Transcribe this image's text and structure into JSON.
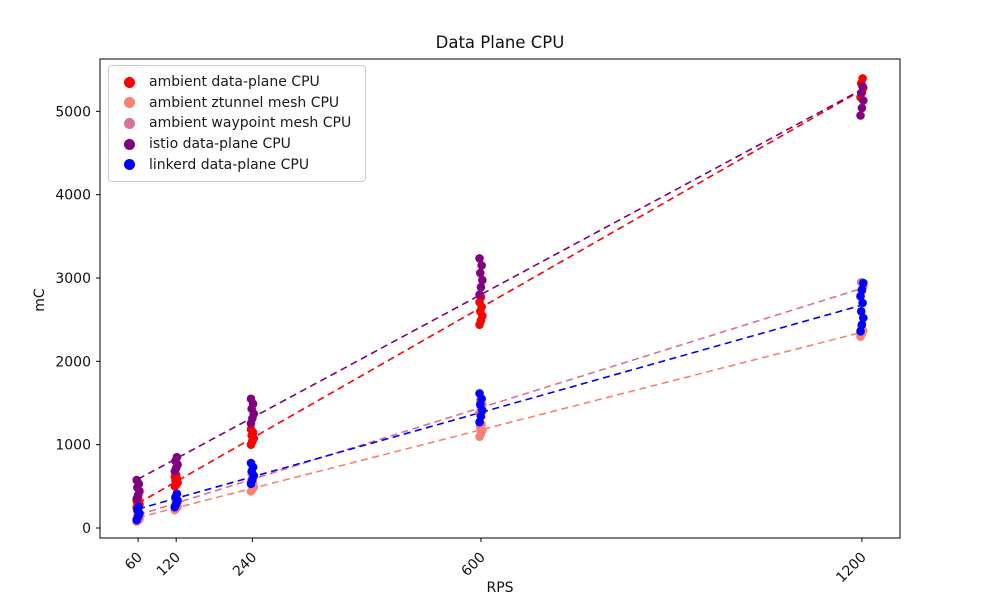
{
  "chart_data": {
    "type": "scatter",
    "title": "Data Plane CPU",
    "xlabel": "RPS",
    "ylabel": "mC",
    "x_ticks": [
      60,
      120,
      240,
      600,
      1200
    ],
    "y_ticks": [
      0,
      1000,
      2000,
      3000,
      4000,
      5000
    ],
    "xlim": [
      0,
      1260
    ],
    "ylim": [
      -120,
      5628
    ],
    "grid": false,
    "legend_position": "upper left",
    "trend_line_style": "dashed linear fit per series spanning RPS 60 to 1200",
    "series": [
      {
        "name": "ambient data-plane CPU",
        "color": "#ff0000",
        "clusters": [
          {
            "rps": 60,
            "values": [
              245,
              265,
              285,
              300,
              315,
              335,
              355
            ]
          },
          {
            "rps": 120,
            "values": [
              500,
              520,
              545,
              565,
              590,
              615,
              635
            ]
          },
          {
            "rps": 240,
            "values": [
              1000,
              1040,
              1075,
              1110,
              1145,
              1185
            ]
          },
          {
            "rps": 600,
            "values": [
              2440,
              2490,
              2545,
              2600,
              2655,
              2710,
              2770
            ]
          },
          {
            "rps": 1200,
            "values": [
              5170,
              5225,
              5280,
              5335,
              5395
            ]
          }
        ]
      },
      {
        "name": "ambient ztunnel mesh CPU",
        "color": "#fa8072",
        "clusters": [
          {
            "rps": 60,
            "values": [
              75,
              90,
              105,
              120,
              135
            ]
          },
          {
            "rps": 120,
            "values": [
              215,
              235,
              255,
              275,
              295
            ]
          },
          {
            "rps": 240,
            "values": [
              440,
              465,
              490,
              515,
              540
            ]
          },
          {
            "rps": 600,
            "values": [
              1095,
              1130,
              1170,
              1210,
              1245
            ]
          },
          {
            "rps": 1200,
            "values": [
              2295,
              2330,
              2370,
              2405
            ]
          }
        ]
      },
      {
        "name": "ambient waypoint mesh CPU",
        "color": "#db7093",
        "clusters": [
          {
            "rps": 60,
            "values": [
              110,
              125,
              140,
              155,
              170
            ]
          },
          {
            "rps": 120,
            "values": [
              260,
              285,
              310,
              335
            ]
          },
          {
            "rps": 240,
            "values": [
              560,
              590,
              620,
              650
            ]
          },
          {
            "rps": 600,
            "values": [
              1380,
              1430,
              1480,
              1530
            ]
          },
          {
            "rps": 1200,
            "values": [
              2780,
              2840,
              2900,
              2950
            ]
          }
        ]
      },
      {
        "name": "istio data-plane CPU",
        "color": "#800080",
        "clusters": [
          {
            "rps": 60,
            "values": [
              350,
              395,
              440,
              485,
              530,
              575
            ]
          },
          {
            "rps": 120,
            "values": [
              680,
              720,
              760,
              805,
              850
            ]
          },
          {
            "rps": 240,
            "values": [
              1255,
              1315,
              1370,
              1430,
              1490,
              1550
            ]
          },
          {
            "rps": 600,
            "values": [
              2800,
              2890,
              2975,
              3060,
              3150,
              3235
            ]
          },
          {
            "rps": 1200,
            "values": [
              4950,
              5040,
              5130,
              5220,
              5300
            ]
          }
        ]
      },
      {
        "name": "linkerd data-plane CPU",
        "color": "#0000ff",
        "clusters": [
          {
            "rps": 60,
            "values": [
              95,
              135,
              175,
              215,
              255
            ]
          },
          {
            "rps": 120,
            "values": [
              250,
              290,
              330,
              370,
              410
            ]
          },
          {
            "rps": 240,
            "values": [
              530,
              580,
              630,
              680,
              730,
              780
            ]
          },
          {
            "rps": 600,
            "values": [
              1270,
              1340,
              1410,
              1480,
              1550,
              1615
            ]
          },
          {
            "rps": 1200,
            "values": [
              2360,
              2440,
              2520,
              2600,
              2700,
              2780,
              2860,
              2940
            ]
          }
        ]
      }
    ]
  }
}
